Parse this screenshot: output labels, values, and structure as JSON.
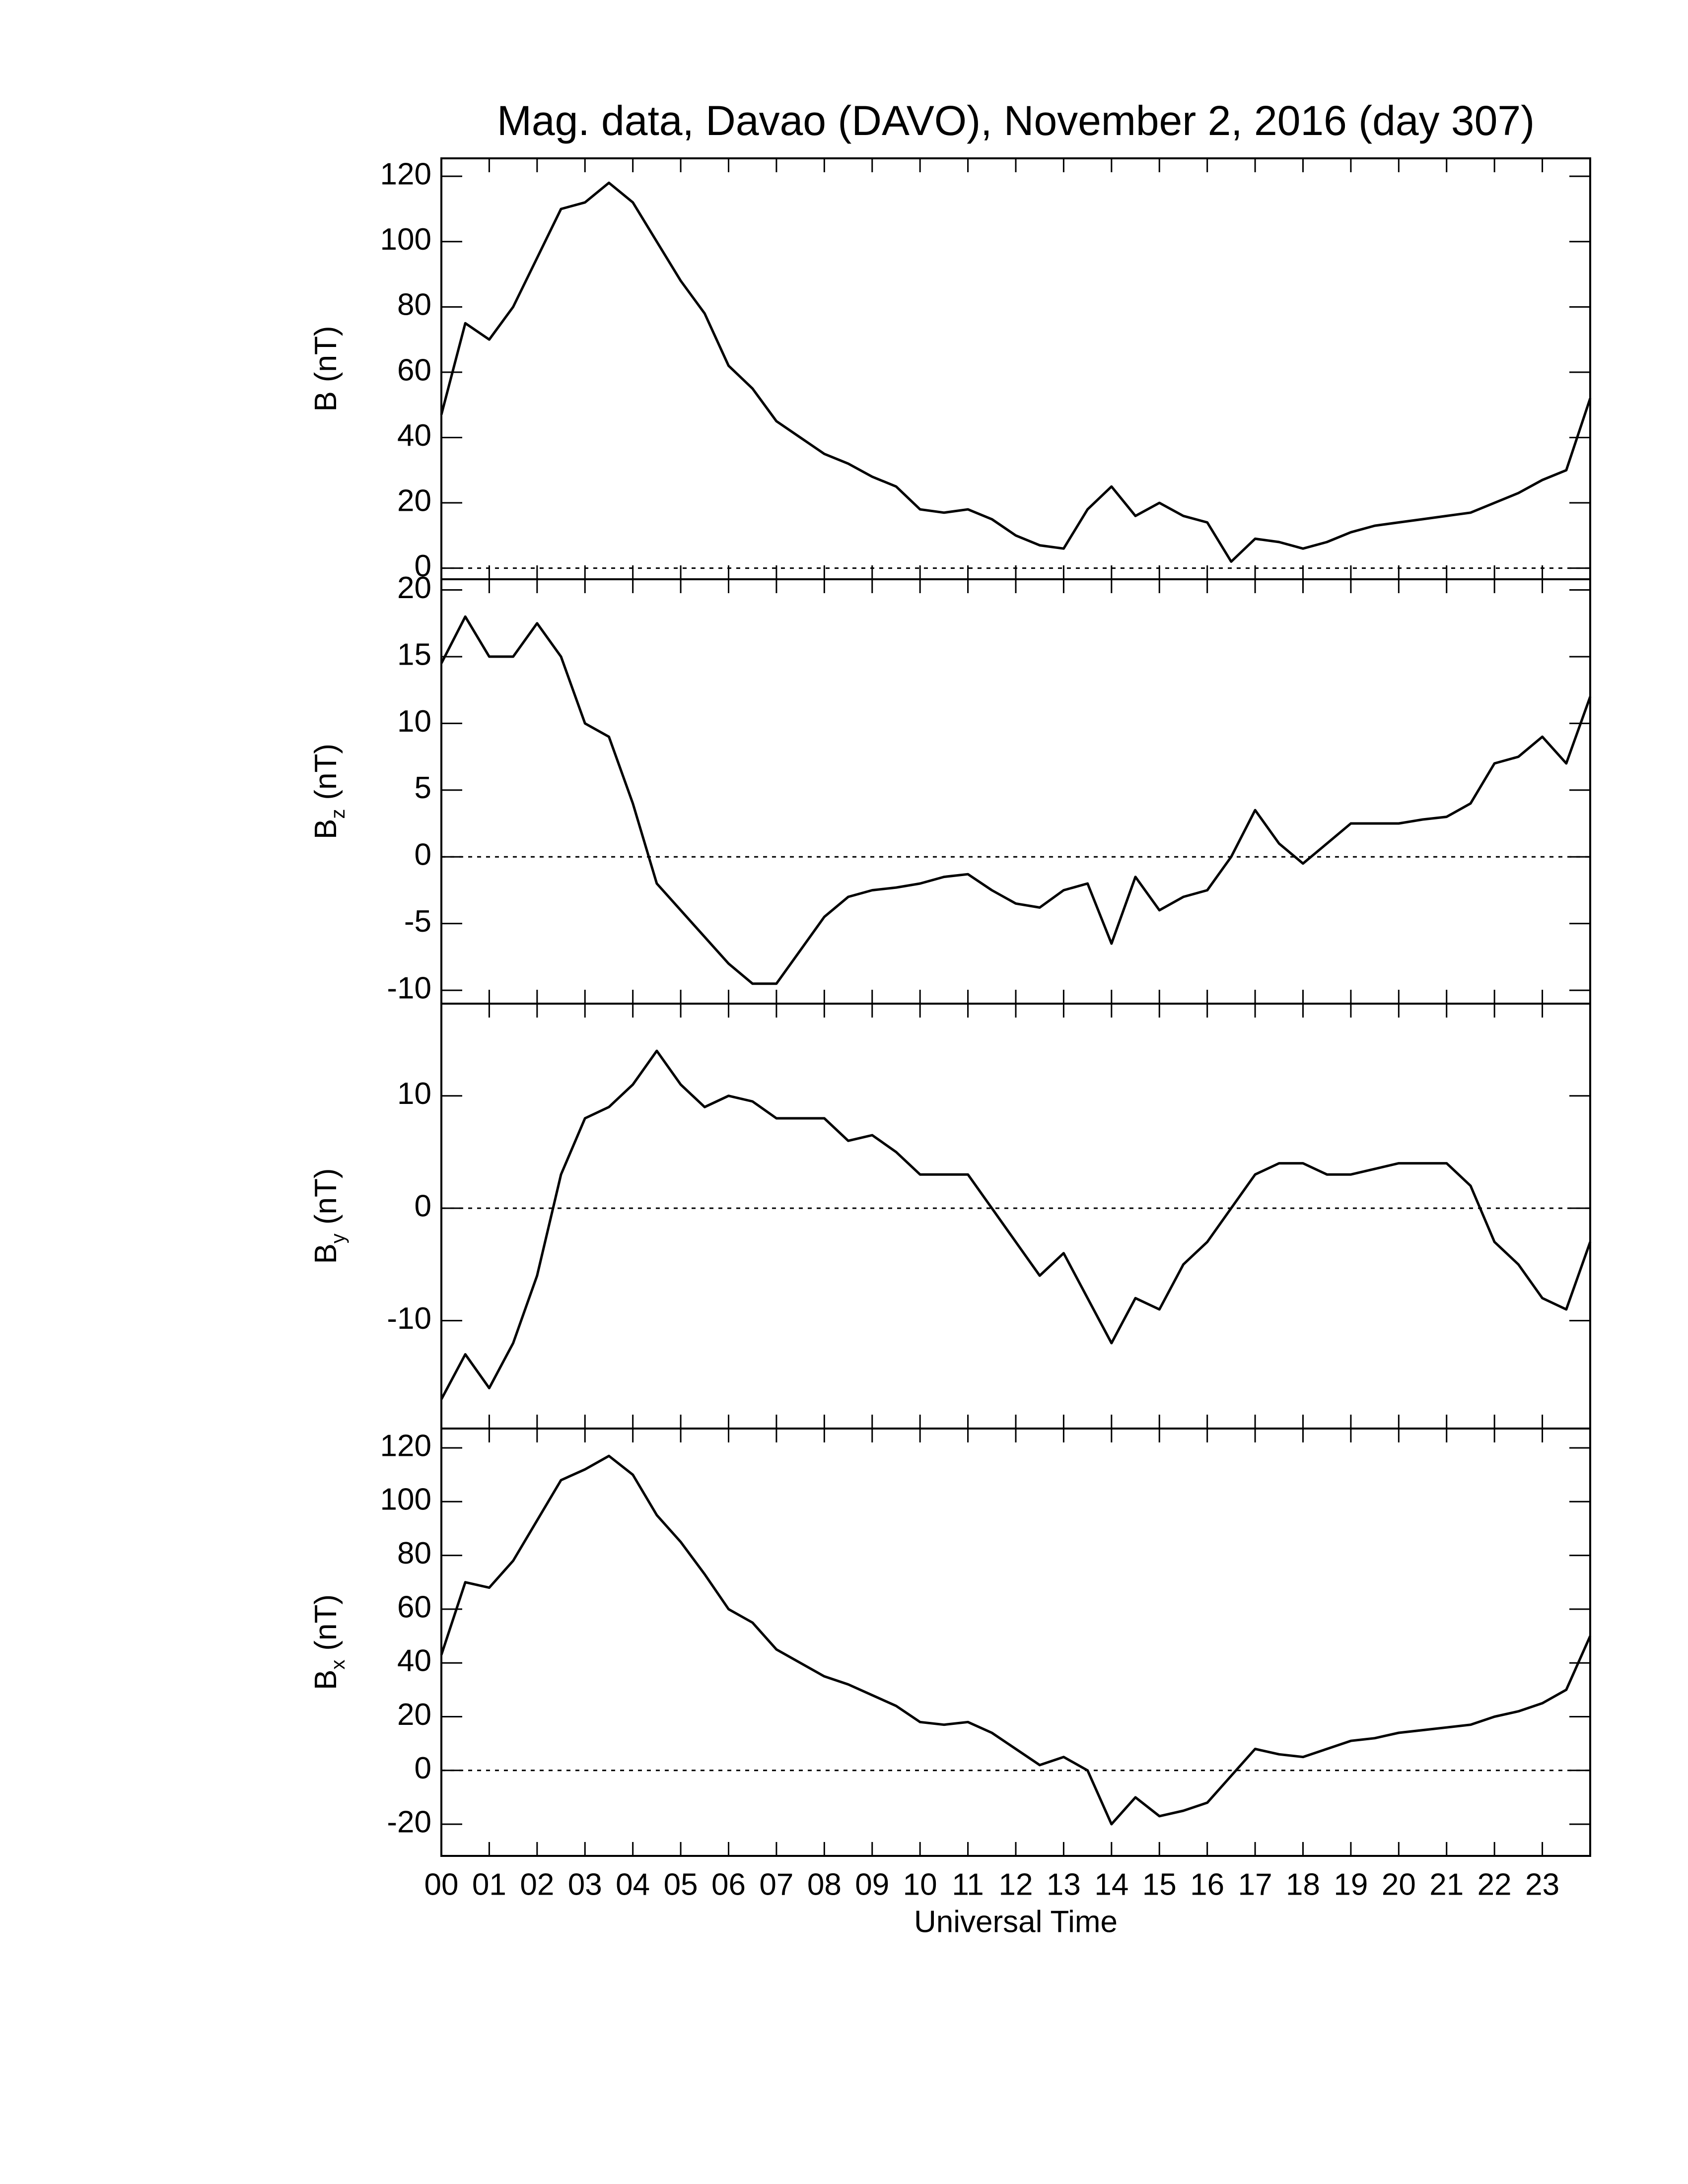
{
  "chart_data": [
    {
      "type": "line",
      "title": "Mag. data, Davao (DAVO), November 2, 2016 (day 307)",
      "ylabel": {
        "symbol": "B",
        "unit": "(nT)"
      },
      "x": [
        0,
        0.5,
        1,
        1.5,
        2,
        2.5,
        3,
        3.5,
        4,
        4.5,
        5,
        5.5,
        6,
        6.5,
        7,
        7.5,
        8,
        8.5,
        9,
        9.5,
        10,
        10.5,
        11,
        11.5,
        12,
        12.5,
        13,
        13.5,
        14,
        14.5,
        15,
        15.5,
        16,
        16.5,
        17,
        17.5,
        18,
        18.5,
        19,
        19.5,
        20,
        20.5,
        21,
        21.5,
        22,
        22.5,
        23,
        23.5,
        24
      ],
      "values": [
        47,
        75,
        70,
        80,
        95,
        110,
        112,
        118,
        112,
        100,
        88,
        78,
        62,
        55,
        45,
        40,
        35,
        32,
        28,
        25,
        18,
        17,
        18,
        15,
        10,
        7,
        6,
        18,
        25,
        16,
        20,
        16,
        14,
        2,
        9,
        8,
        6,
        8,
        11,
        13,
        14,
        15,
        16,
        17,
        20,
        23,
        27,
        30,
        52
      ],
      "color": "#000000",
      "xlim": [
        0,
        24
      ],
      "xticks": [
        0,
        1,
        2,
        3,
        4,
        5,
        6,
        7,
        8,
        9,
        10,
        11,
        12,
        13,
        14,
        15,
        16,
        17,
        18,
        19,
        20,
        21,
        22,
        23
      ],
      "ylim": [
        -3.4,
        125.5
      ],
      "yticks": [
        0,
        20,
        40,
        60,
        80,
        100,
        120
      ],
      "reference_line": 0
    },
    {
      "type": "line",
      "ylabel": {
        "symbol": "B",
        "subscript": "z",
        "unit": "(nT)"
      },
      "x": [
        0,
        0.5,
        1,
        1.5,
        2,
        2.5,
        3,
        3.5,
        4,
        4.5,
        5,
        5.5,
        6,
        6.5,
        7,
        7.5,
        8,
        8.5,
        9,
        9.5,
        10,
        10.5,
        11,
        11.5,
        12,
        12.5,
        13,
        13.5,
        14,
        14.5,
        15,
        15.5,
        16,
        16.5,
        17,
        17.5,
        18,
        18.5,
        19,
        19.5,
        20,
        20.5,
        21,
        21.5,
        22,
        22.5,
        23,
        23.5,
        24
      ],
      "values": [
        14.5,
        18,
        15,
        15,
        17.5,
        15,
        10,
        9,
        4,
        -2,
        -4,
        -6,
        -8,
        -9.5,
        -9.5,
        -7,
        -4.5,
        -3,
        -2.5,
        -2.3,
        -2,
        -1.5,
        -1.3,
        -2.5,
        -3.5,
        -3.8,
        -2.5,
        -2,
        -6.5,
        -1.5,
        -4,
        -3,
        -2.5,
        0,
        3.5,
        1,
        -0.5,
        1,
        2.5,
        2.5,
        2.5,
        2.8,
        3,
        4,
        7,
        7.5,
        9,
        7,
        12
      ],
      "color": "#000000",
      "xlim": [
        0,
        24
      ],
      "xticks": [
        0,
        1,
        2,
        3,
        4,
        5,
        6,
        7,
        8,
        9,
        10,
        11,
        12,
        13,
        14,
        15,
        16,
        17,
        18,
        19,
        20,
        21,
        22,
        23
      ],
      "ylim": [
        -11,
        20.8
      ],
      "yticks": [
        -10,
        -5,
        0,
        5,
        10,
        15,
        20
      ],
      "reference_line": 0
    },
    {
      "type": "line",
      "ylabel": {
        "symbol": "B",
        "subscript": "y",
        "unit": "(nT)"
      },
      "x": [
        0,
        0.5,
        1,
        1.5,
        2,
        2.5,
        3,
        3.5,
        4,
        4.5,
        5,
        5.5,
        6,
        6.5,
        7,
        7.5,
        8,
        8.5,
        9,
        9.5,
        10,
        10.5,
        11,
        11.5,
        12,
        12.5,
        13,
        13.5,
        14,
        14.5,
        15,
        15.5,
        16,
        16.5,
        17,
        17.5,
        18,
        18.5,
        19,
        19.5,
        20,
        20.5,
        21,
        21.5,
        22,
        22.5,
        23,
        23.5,
        24
      ],
      "values": [
        -17,
        -13,
        -16,
        -12,
        -6,
        3,
        8,
        9,
        11,
        14,
        11,
        9,
        10,
        9.5,
        8,
        8,
        8,
        6,
        6.5,
        5,
        3,
        3,
        3,
        0,
        -3,
        -6,
        -4,
        -8,
        -12,
        -8,
        -9,
        -5,
        -3,
        0,
        3,
        4,
        4,
        3,
        3,
        3.5,
        4,
        4,
        4,
        2,
        -3,
        -5,
        -8,
        -9,
        -3
      ],
      "color": "#000000",
      "xlim": [
        0,
        24
      ],
      "xticks": [
        0,
        1,
        2,
        3,
        4,
        5,
        6,
        7,
        8,
        9,
        10,
        11,
        12,
        13,
        14,
        15,
        16,
        17,
        18,
        19,
        20,
        21,
        22,
        23
      ],
      "ylim": [
        -19.6,
        18.2
      ],
      "yticks": [
        -10,
        0,
        10
      ],
      "reference_line": 0
    },
    {
      "type": "line",
      "xlabel": "Universal Time",
      "ylabel": {
        "symbol": "B",
        "subscript": "x",
        "unit": "(nT)"
      },
      "x": [
        0,
        0.5,
        1,
        1.5,
        2,
        2.5,
        3,
        3.5,
        4,
        4.5,
        5,
        5.5,
        6,
        6.5,
        7,
        7.5,
        8,
        8.5,
        9,
        9.5,
        10,
        10.5,
        11,
        11.5,
        12,
        12.5,
        13,
        13.5,
        14,
        14.5,
        15,
        15.5,
        16,
        16.5,
        17,
        17.5,
        18,
        18.5,
        19,
        19.5,
        20,
        20.5,
        21,
        21.5,
        22,
        22.5,
        23,
        23.5,
        24
      ],
      "values": [
        43,
        70,
        68,
        78,
        93,
        108,
        112,
        117,
        110,
        95,
        85,
        73,
        60,
        55,
        45,
        40,
        35,
        32,
        28,
        24,
        18,
        17,
        18,
        14,
        8,
        2,
        5,
        0,
        -20,
        -10,
        -17,
        -15,
        -12,
        -2,
        8,
        6,
        5,
        8,
        11,
        12,
        14,
        15,
        16,
        17,
        20,
        22,
        25,
        30,
        50
      ],
      "color": "#000000",
      "xlim": [
        0,
        24
      ],
      "xticks": [
        {
          "value": 0,
          "label": "00"
        },
        {
          "value": 1,
          "label": "01"
        },
        {
          "value": 2,
          "label": "02"
        },
        {
          "value": 3,
          "label": "03"
        },
        {
          "value": 4,
          "label": "04"
        },
        {
          "value": 5,
          "label": "05"
        },
        {
          "value": 6,
          "label": "06"
        },
        {
          "value": 7,
          "label": "07"
        },
        {
          "value": 8,
          "label": "08"
        },
        {
          "value": 9,
          "label": "09"
        },
        {
          "value": 10,
          "label": "10"
        },
        {
          "value": 11,
          "label": "11"
        },
        {
          "value": 12,
          "label": "12"
        },
        {
          "value": 13,
          "label": "13"
        },
        {
          "value": 14,
          "label": "14"
        },
        {
          "value": 15,
          "label": "15"
        },
        {
          "value": 16,
          "label": "16"
        },
        {
          "value": 17,
          "label": "17"
        },
        {
          "value": 18,
          "label": "18"
        },
        {
          "value": 19,
          "label": "19"
        },
        {
          "value": 20,
          "label": "20"
        },
        {
          "value": 21,
          "label": "21"
        },
        {
          "value": 22,
          "label": "22"
        },
        {
          "value": 23,
          "label": "23"
        }
      ],
      "ylim": [
        -31.8,
        127.2
      ],
      "yticks": [
        -20,
        0,
        20,
        40,
        60,
        80,
        100,
        120
      ],
      "reference_line": 0
    }
  ]
}
